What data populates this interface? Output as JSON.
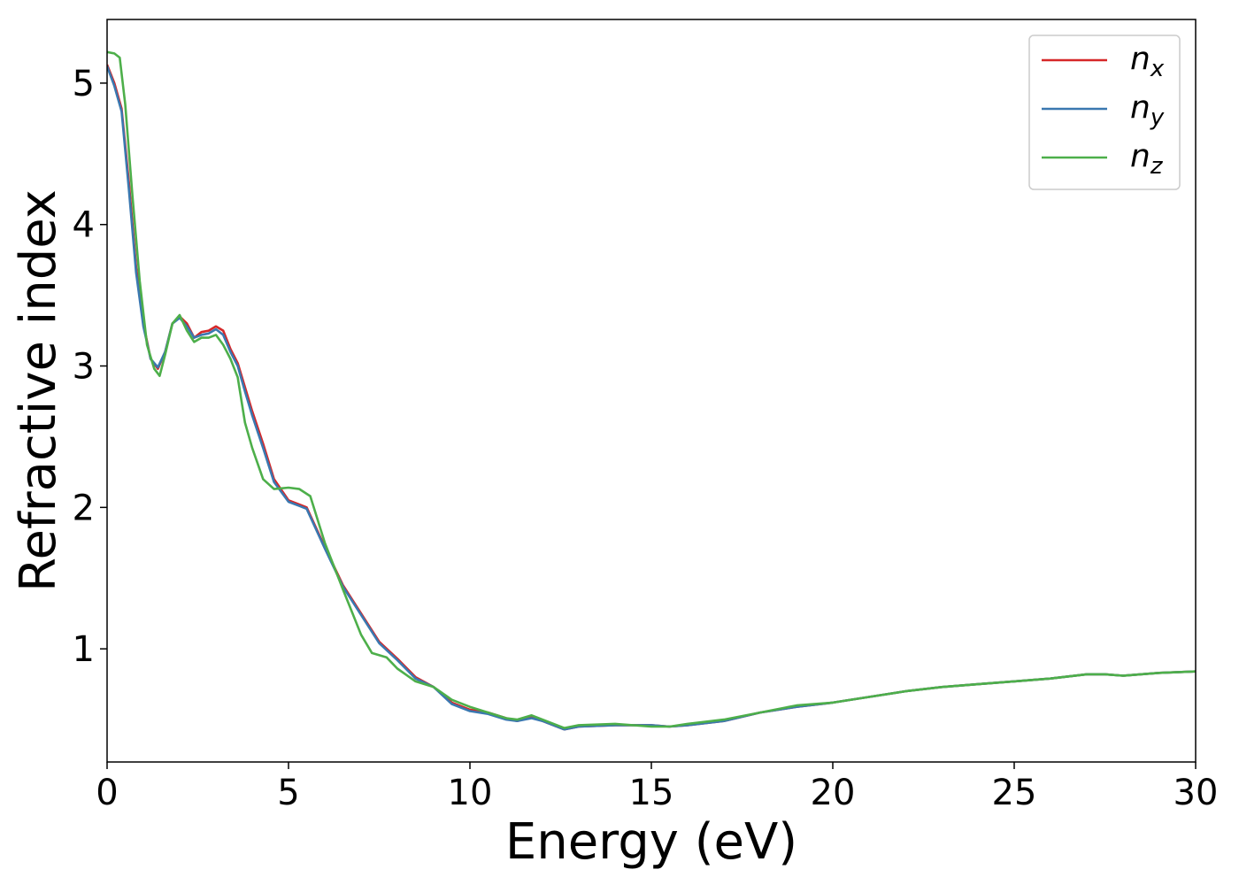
{
  "chart_data": {
    "type": "line",
    "title": "",
    "xlabel": "Energy (eV)",
    "ylabel": "Refractive index",
    "xlim": [
      0,
      30
    ],
    "ylim": [
      0.2,
      5.45
    ],
    "xticks": [
      0,
      5,
      10,
      15,
      20,
      25,
      30
    ],
    "yticks": [
      1,
      2,
      3,
      4,
      5
    ],
    "grid": false,
    "legend_position": "top-right",
    "series": [
      {
        "name": "n",
        "subscript": "x",
        "color": "#d62728",
        "x": [
          0,
          0.2,
          0.4,
          0.6,
          0.8,
          1.0,
          1.2,
          1.4,
          1.6,
          1.8,
          2.0,
          2.2,
          2.4,
          2.6,
          2.8,
          3.0,
          3.2,
          3.4,
          3.6,
          3.8,
          4.0,
          4.3,
          4.6,
          5.0,
          5.3,
          5.5,
          6.0,
          6.5,
          7.0,
          7.5,
          8.0,
          8.5,
          9.0,
          9.5,
          10.0,
          10.5,
          11.0,
          11.3,
          11.7,
          12.0,
          12.6,
          13.0,
          14.0,
          15.0,
          15.5,
          16.0,
          17.0,
          18.0,
          19.0,
          20.0,
          21.0,
          22.0,
          23.0,
          24.0,
          25.0,
          26.0,
          27.0,
          27.5,
          28.0,
          29.0,
          30.0
        ],
        "y": [
          5.13,
          5.0,
          4.82,
          4.3,
          3.7,
          3.3,
          3.05,
          2.98,
          3.1,
          3.3,
          3.35,
          3.3,
          3.2,
          3.24,
          3.25,
          3.28,
          3.25,
          3.12,
          3.02,
          2.85,
          2.68,
          2.45,
          2.2,
          2.05,
          2.02,
          2.0,
          1.72,
          1.45,
          1.25,
          1.05,
          0.93,
          0.8,
          0.73,
          0.62,
          0.57,
          0.55,
          0.51,
          0.49,
          0.52,
          0.49,
          0.43,
          0.45,
          0.46,
          0.46,
          0.45,
          0.46,
          0.49,
          0.55,
          0.59,
          0.62,
          0.66,
          0.7,
          0.73,
          0.75,
          0.77,
          0.79,
          0.82,
          0.82,
          0.81,
          0.83,
          0.84
        ]
      },
      {
        "name": "n",
        "subscript": "y",
        "color": "#3a78b0",
        "x": [
          0,
          0.2,
          0.4,
          0.6,
          0.8,
          1.0,
          1.2,
          1.4,
          1.6,
          1.8,
          2.0,
          2.2,
          2.4,
          2.6,
          2.8,
          3.0,
          3.2,
          3.4,
          3.6,
          3.8,
          4.0,
          4.3,
          4.6,
          5.0,
          5.3,
          5.5,
          6.0,
          6.5,
          7.0,
          7.5,
          8.0,
          8.5,
          9.0,
          9.5,
          10.0,
          10.5,
          11.0,
          11.3,
          11.7,
          12.0,
          12.6,
          13.0,
          14.0,
          15.0,
          15.5,
          16.0,
          17.0,
          18.0,
          19.0,
          20.0,
          21.0,
          22.0,
          23.0,
          24.0,
          25.0,
          26.0,
          27.0,
          27.5,
          28.0,
          29.0,
          30.0
        ],
        "y": [
          5.12,
          4.98,
          4.8,
          4.25,
          3.66,
          3.28,
          3.05,
          2.99,
          3.1,
          3.3,
          3.34,
          3.28,
          3.2,
          3.22,
          3.23,
          3.26,
          3.22,
          3.1,
          3.0,
          2.82,
          2.65,
          2.42,
          2.18,
          2.04,
          2.01,
          1.99,
          1.71,
          1.44,
          1.24,
          1.04,
          0.92,
          0.79,
          0.73,
          0.61,
          0.56,
          0.54,
          0.5,
          0.49,
          0.51,
          0.49,
          0.43,
          0.45,
          0.46,
          0.46,
          0.45,
          0.46,
          0.49,
          0.55,
          0.59,
          0.62,
          0.66,
          0.7,
          0.73,
          0.75,
          0.77,
          0.79,
          0.82,
          0.82,
          0.81,
          0.83,
          0.84
        ]
      },
      {
        "name": "n",
        "subscript": "z",
        "color": "#4daf4a",
        "x": [
          0,
          0.2,
          0.35,
          0.5,
          0.7,
          0.9,
          1.1,
          1.3,
          1.45,
          1.6,
          1.8,
          2.0,
          2.2,
          2.4,
          2.6,
          2.8,
          3.0,
          3.2,
          3.4,
          3.6,
          3.8,
          4.0,
          4.3,
          4.6,
          5.0,
          5.3,
          5.6,
          6.0,
          6.5,
          7.0,
          7.3,
          7.7,
          8.0,
          8.5,
          9.0,
          9.5,
          10.0,
          10.5,
          11.0,
          11.3,
          11.7,
          12.0,
          12.6,
          13.0,
          14.0,
          15.0,
          15.5,
          16.0,
          17.0,
          18.0,
          19.0,
          20.0,
          21.0,
          22.0,
          23.0,
          24.0,
          25.0,
          26.0,
          27.0,
          27.5,
          28.0,
          29.0,
          30.0
        ],
        "y": [
          5.22,
          5.21,
          5.18,
          4.85,
          4.2,
          3.6,
          3.15,
          2.98,
          2.93,
          3.08,
          3.3,
          3.36,
          3.25,
          3.17,
          3.2,
          3.2,
          3.22,
          3.15,
          3.05,
          2.92,
          2.6,
          2.42,
          2.2,
          2.13,
          2.14,
          2.13,
          2.08,
          1.75,
          1.42,
          1.1,
          0.97,
          0.94,
          0.86,
          0.77,
          0.73,
          0.64,
          0.59,
          0.55,
          0.51,
          0.5,
          0.53,
          0.5,
          0.44,
          0.46,
          0.47,
          0.45,
          0.45,
          0.47,
          0.5,
          0.55,
          0.6,
          0.62,
          0.66,
          0.7,
          0.73,
          0.75,
          0.77,
          0.79,
          0.82,
          0.82,
          0.81,
          0.83,
          0.84
        ]
      }
    ]
  }
}
